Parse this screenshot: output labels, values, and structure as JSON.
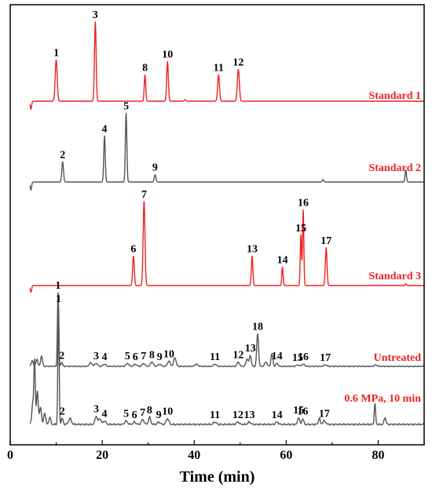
{
  "chart_data": {
    "type": "line",
    "xlabel": "Time (min)",
    "xlim": [
      0,
      90
    ],
    "xticks": [
      0,
      20,
      40,
      60,
      80
    ],
    "colors": {
      "red": "#ee2222",
      "gray": "#555555",
      "axis": "#000000"
    },
    "series": [
      {
        "name": "Standard 1",
        "color": "#ee2222",
        "baseline_noise": [
          [
            4.5,
            -0.1
          ],
          [
            38,
            0.02
          ]
        ],
        "peaks": [
          {
            "t": 10.0,
            "h": 0.52,
            "w": 0.22,
            "label": "1"
          },
          {
            "t": 18.5,
            "h": 1.0,
            "w": 0.18,
            "label": "3"
          },
          {
            "t": 29.3,
            "h": 0.33,
            "w": 0.16,
            "label": "8"
          },
          {
            "t": 34.2,
            "h": 0.5,
            "w": 0.18,
            "label": "10"
          },
          {
            "t": 45.3,
            "h": 0.33,
            "w": 0.2,
            "label": "11"
          },
          {
            "t": 49.6,
            "h": 0.4,
            "w": 0.22,
            "label": "12"
          }
        ]
      },
      {
        "name": "Standard 2",
        "color": "#555555",
        "baseline_noise": [
          [
            4.5,
            -0.1
          ],
          [
            68,
            0.03
          ],
          [
            86,
            0.15
          ]
        ],
        "peaks": [
          {
            "t": 11.4,
            "h": 0.25,
            "w": 0.18,
            "label": "2"
          },
          {
            "t": 20.5,
            "h": 0.57,
            "w": 0.16,
            "label": "4"
          },
          {
            "t": 25.2,
            "h": 0.85,
            "w": 0.16,
            "label": "5"
          },
          {
            "t": 31.5,
            "h": 0.09,
            "w": 0.18,
            "label": "9"
          }
        ]
      },
      {
        "name": "Standard 3",
        "color": "#ee2222",
        "baseline_noise": [
          [
            4.5,
            -0.08
          ],
          [
            86,
            0.02
          ]
        ],
        "peaks": [
          {
            "t": 26.8,
            "h": 0.35,
            "w": 0.18,
            "label": "6"
          },
          {
            "t": 29.1,
            "h": 1.0,
            "w": 0.2,
            "label": "7"
          },
          {
            "t": 52.6,
            "h": 0.35,
            "w": 0.16,
            "label": "13"
          },
          {
            "t": 59.2,
            "h": 0.22,
            "w": 0.14,
            "label": "14"
          },
          {
            "t": 63.2,
            "h": 0.6,
            "w": 0.14,
            "label": "15"
          },
          {
            "t": 63.7,
            "h": 0.9,
            "w": 0.14,
            "label": "16"
          },
          {
            "t": 68.7,
            "h": 0.45,
            "w": 0.18,
            "label": "17"
          }
        ]
      },
      {
        "name": "Untreated",
        "color": "#555555",
        "peaks": [
          {
            "t": 4.8,
            "h": 0.08,
            "w": 0.2
          },
          {
            "t": 5.8,
            "h": 0.1,
            "w": 0.2
          },
          {
            "t": 6.8,
            "h": 0.14,
            "w": 0.2
          },
          {
            "t": 10.4,
            "h": 1.0,
            "w": 0.14,
            "label": "1"
          },
          {
            "t": 11.2,
            "h": 0.05,
            "w": 0.2,
            "label": "2"
          },
          {
            "t": 17.5,
            "h": 0.05,
            "w": 0.3
          },
          {
            "t": 18.7,
            "h": 0.04,
            "w": 0.3,
            "label": "3"
          },
          {
            "t": 20.5,
            "h": 0.03,
            "w": 0.3,
            "label": "4"
          },
          {
            "t": 25.5,
            "h": 0.04,
            "w": 0.3,
            "label": "5"
          },
          {
            "t": 27.2,
            "h": 0.03,
            "w": 0.3,
            "label": "6"
          },
          {
            "t": 29.0,
            "h": 0.04,
            "w": 0.3,
            "label": "7"
          },
          {
            "t": 30.8,
            "h": 0.06,
            "w": 0.3,
            "label": "8"
          },
          {
            "t": 32.5,
            "h": 0.03,
            "w": 0.3,
            "label": "9"
          },
          {
            "t": 34.5,
            "h": 0.07,
            "w": 0.3,
            "label": "10"
          },
          {
            "t": 35.8,
            "h": 0.12,
            "w": 0.25
          },
          {
            "t": 40.5,
            "h": 0.03,
            "w": 0.3
          },
          {
            "t": 44.5,
            "h": 0.03,
            "w": 0.3,
            "label": "11"
          },
          {
            "t": 49.6,
            "h": 0.06,
            "w": 0.25,
            "label": "12"
          },
          {
            "t": 51.5,
            "h": 0.1,
            "w": 0.25
          },
          {
            "t": 52.2,
            "h": 0.15,
            "w": 0.2,
            "label": "13"
          },
          {
            "t": 53.8,
            "h": 0.44,
            "w": 0.2,
            "label": "18"
          },
          {
            "t": 55.6,
            "h": 0.06,
            "w": 0.25
          },
          {
            "t": 56.9,
            "h": 0.17,
            "w": 0.2
          },
          {
            "t": 58.0,
            "h": 0.04,
            "w": 0.25,
            "label": "14"
          },
          {
            "t": 62.5,
            "h": 0.02,
            "w": 0.3,
            "label": "15"
          },
          {
            "t": 63.7,
            "h": 0.03,
            "w": 0.3,
            "label": "16"
          },
          {
            "t": 68.5,
            "h": 0.02,
            "w": 0.3,
            "label": "17"
          },
          {
            "t": 79.5,
            "h": 0.02,
            "w": 0.3
          }
        ]
      },
      {
        "name": "0.6 MPa, 10 min",
        "color": "#555555",
        "peaks": [
          {
            "t": 3.8,
            "h": 0.1,
            "w": 0.2
          },
          {
            "t": 4.9,
            "h": 0.18,
            "w": 0.2
          },
          {
            "t": 5.3,
            "h": 0.52,
            "w": 0.15
          },
          {
            "t": 5.9,
            "h": 0.28,
            "w": 0.2
          },
          {
            "t": 6.6,
            "h": 0.15,
            "w": 0.2
          },
          {
            "t": 7.5,
            "h": 0.1,
            "w": 0.2
          },
          {
            "t": 8.6,
            "h": 0.06,
            "w": 0.2
          },
          {
            "t": 10.5,
            "h": 1.0,
            "w": 0.14,
            "label": "1"
          },
          {
            "t": 11.3,
            "h": 0.05,
            "w": 0.2,
            "label": "2"
          },
          {
            "t": 13.0,
            "h": 0.05,
            "w": 0.3
          },
          {
            "t": 18.7,
            "h": 0.07,
            "w": 0.25,
            "label": "3"
          },
          {
            "t": 19.5,
            "h": 0.05,
            "w": 0.25
          },
          {
            "t": 20.5,
            "h": 0.03,
            "w": 0.3,
            "label": "4"
          },
          {
            "t": 25.2,
            "h": 0.03,
            "w": 0.3,
            "label": "5"
          },
          {
            "t": 27.0,
            "h": 0.02,
            "w": 0.3,
            "label": "6"
          },
          {
            "t": 28.8,
            "h": 0.04,
            "w": 0.3,
            "label": "7"
          },
          {
            "t": 30.3,
            "h": 0.06,
            "w": 0.25,
            "label": "8"
          },
          {
            "t": 32.3,
            "h": 0.02,
            "w": 0.3,
            "label": "9"
          },
          {
            "t": 34.2,
            "h": 0.05,
            "w": 0.3,
            "label": "10"
          },
          {
            "t": 44.5,
            "h": 0.02,
            "w": 0.3,
            "label": "11"
          },
          {
            "t": 49.5,
            "h": 0.02,
            "w": 0.3,
            "label": "12"
          },
          {
            "t": 52.0,
            "h": 0.02,
            "w": 0.3,
            "label": "13"
          },
          {
            "t": 58.0,
            "h": 0.02,
            "w": 0.3,
            "label": "14"
          },
          {
            "t": 62.7,
            "h": 0.06,
            "w": 0.2,
            "label": "15"
          },
          {
            "t": 63.6,
            "h": 0.05,
            "w": 0.2,
            "label": "16"
          },
          {
            "t": 67.2,
            "h": 0.05,
            "w": 0.2
          },
          {
            "t": 68.3,
            "h": 0.03,
            "w": 0.3,
            "label": "17"
          },
          {
            "t": 79.3,
            "h": 0.17,
            "w": 0.15
          },
          {
            "t": 81.5,
            "h": 0.06,
            "w": 0.2
          }
        ]
      }
    ]
  }
}
